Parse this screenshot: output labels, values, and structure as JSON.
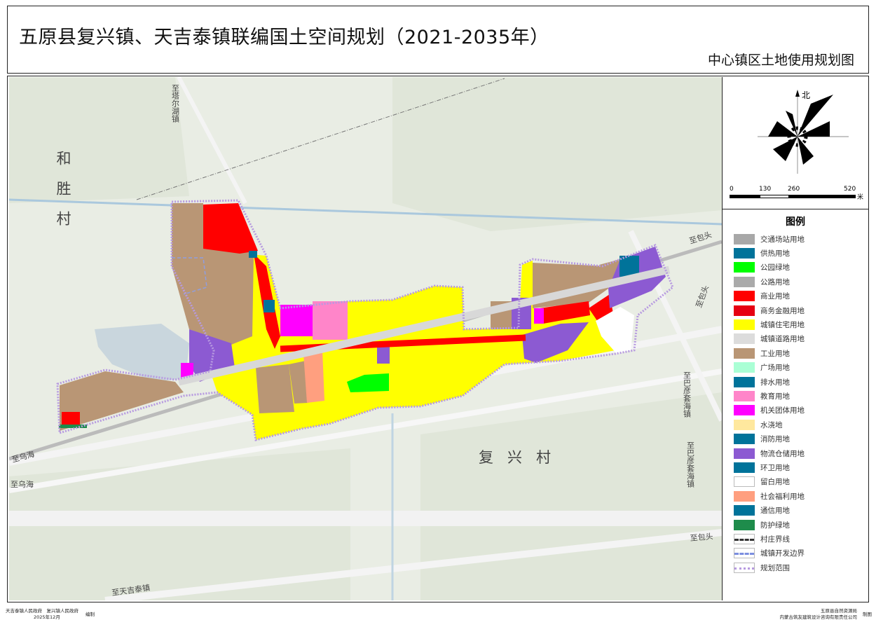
{
  "header": {
    "title": "五原县复兴镇、天吉泰镇联编国土空间规划（2021-2035年）",
    "subtitle": "中心镇区土地使用规划图"
  },
  "compass": {
    "north_label": "北"
  },
  "scale_bar": {
    "ticks": [
      "0",
      "130",
      "260",
      "520"
    ],
    "unit": "米"
  },
  "legend": {
    "title": "图例",
    "items": [
      {
        "label": "交通场站用地",
        "color": "#a8a8a8",
        "style": "fill"
      },
      {
        "label": "供热用地",
        "color": "#00739a",
        "style": "fill"
      },
      {
        "label": "公园绿地",
        "color": "#00ff00",
        "style": "fill"
      },
      {
        "label": "公路用地",
        "color": "#aaaaaa",
        "style": "fill"
      },
      {
        "label": "商业用地",
        "color": "#ff0000",
        "style": "fill"
      },
      {
        "label": "商务金融用地",
        "color": "#e60012",
        "style": "fill"
      },
      {
        "label": "城镇住宅用地",
        "color": "#ffff00",
        "style": "fill"
      },
      {
        "label": "城镇道路用地",
        "color": "#dcdcdc",
        "style": "fill"
      },
      {
        "label": "工业用地",
        "color": "#b99675",
        "style": "fill"
      },
      {
        "label": "广场用地",
        "color": "#aaffd5",
        "style": "fill"
      },
      {
        "label": "排水用地",
        "color": "#00739a",
        "style": "fill"
      },
      {
        "label": "教育用地",
        "color": "#ff85c9",
        "style": "fill"
      },
      {
        "label": "机关团体用地",
        "color": "#ff00ff",
        "style": "fill"
      },
      {
        "label": "水浇地",
        "color": "#ffe89e",
        "style": "fill"
      },
      {
        "label": "消防用地",
        "color": "#00739a",
        "style": "fill"
      },
      {
        "label": "物流仓储用地",
        "color": "#8c5ad2",
        "style": "fill"
      },
      {
        "label": "环卫用地",
        "color": "#00739a",
        "style": "fill"
      },
      {
        "label": "留白用地",
        "color": "#ffffff",
        "style": "fill"
      },
      {
        "label": "社会福利用地",
        "color": "#ff9f7f",
        "style": "fill"
      },
      {
        "label": "通信用地",
        "color": "#00739a",
        "style": "fill"
      },
      {
        "label": "防护绿地",
        "color": "#1e8c4b",
        "style": "fill"
      },
      {
        "label": "村庄界线",
        "color": "#333333",
        "style": "dashdot"
      },
      {
        "label": "城镇开发边界",
        "color": "#7b8ee0",
        "style": "dash"
      },
      {
        "label": "规划范围",
        "color": "#b79ae0",
        "style": "dot"
      }
    ]
  },
  "map_labels": {
    "to_taerhu": "至塔尔湖镇",
    "hesheng": "和胜村",
    "fuxing": "复兴村",
    "to_baotou": "至包头",
    "to_bayantaohai": "至巴彦套海镇",
    "to_wuhai": "至乌海",
    "to_tianjitai": "至天吉泰镇"
  },
  "footer": {
    "left_line1": "天吉泰镇人民政府　复兴镇人民政府",
    "left_line2": "2025年12月",
    "left_action": "编制",
    "right_line1": "五原县自然资源局",
    "right_line2": "内蒙古筑友建筑设计咨询有限责任公司",
    "right_action": "制图"
  }
}
